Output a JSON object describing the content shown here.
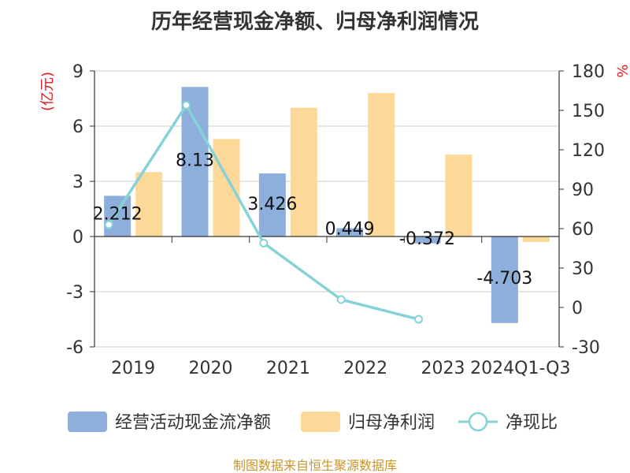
{
  "chart_data": {
    "type": "bar+line",
    "title": "历年经营现金净额、归母净利润情况",
    "categories": [
      "2019",
      "2020",
      "2021",
      "2022",
      "2023",
      "2024Q1-Q3"
    ],
    "series": [
      {
        "name": "经营活动现金流净额",
        "type": "bar",
        "axis": "left",
        "color": "#8eaedb",
        "values": [
          2.212,
          8.13,
          3.426,
          0.449,
          -0.372,
          -4.703
        ],
        "labels": [
          "2.212",
          "8.13",
          "3.426",
          "0.449",
          "-0.372",
          "-4.703"
        ]
      },
      {
        "name": "归母净利润",
        "type": "bar",
        "axis": "left",
        "color": "#fdd999",
        "values": [
          3.5,
          5.3,
          7.0,
          7.8,
          4.45,
          -0.3
        ]
      },
      {
        "name": "净现比",
        "type": "line",
        "axis": "right",
        "color": "#85d3d8",
        "values": [
          63,
          154,
          49,
          6,
          -9,
          null
        ]
      }
    ],
    "y_left": {
      "unit": "(亿元)",
      "min": -6,
      "max": 9,
      "ticks": [
        -6,
        -3,
        0,
        3,
        6,
        9
      ]
    },
    "y_right": {
      "unit": "%",
      "min": -30,
      "max": 180,
      "ticks": [
        -30,
        0,
        30,
        60,
        90,
        120,
        150,
        180
      ]
    },
    "legend_position": "bottom",
    "grid": true,
    "source": "制图数据来自恒生聚源数据库"
  }
}
